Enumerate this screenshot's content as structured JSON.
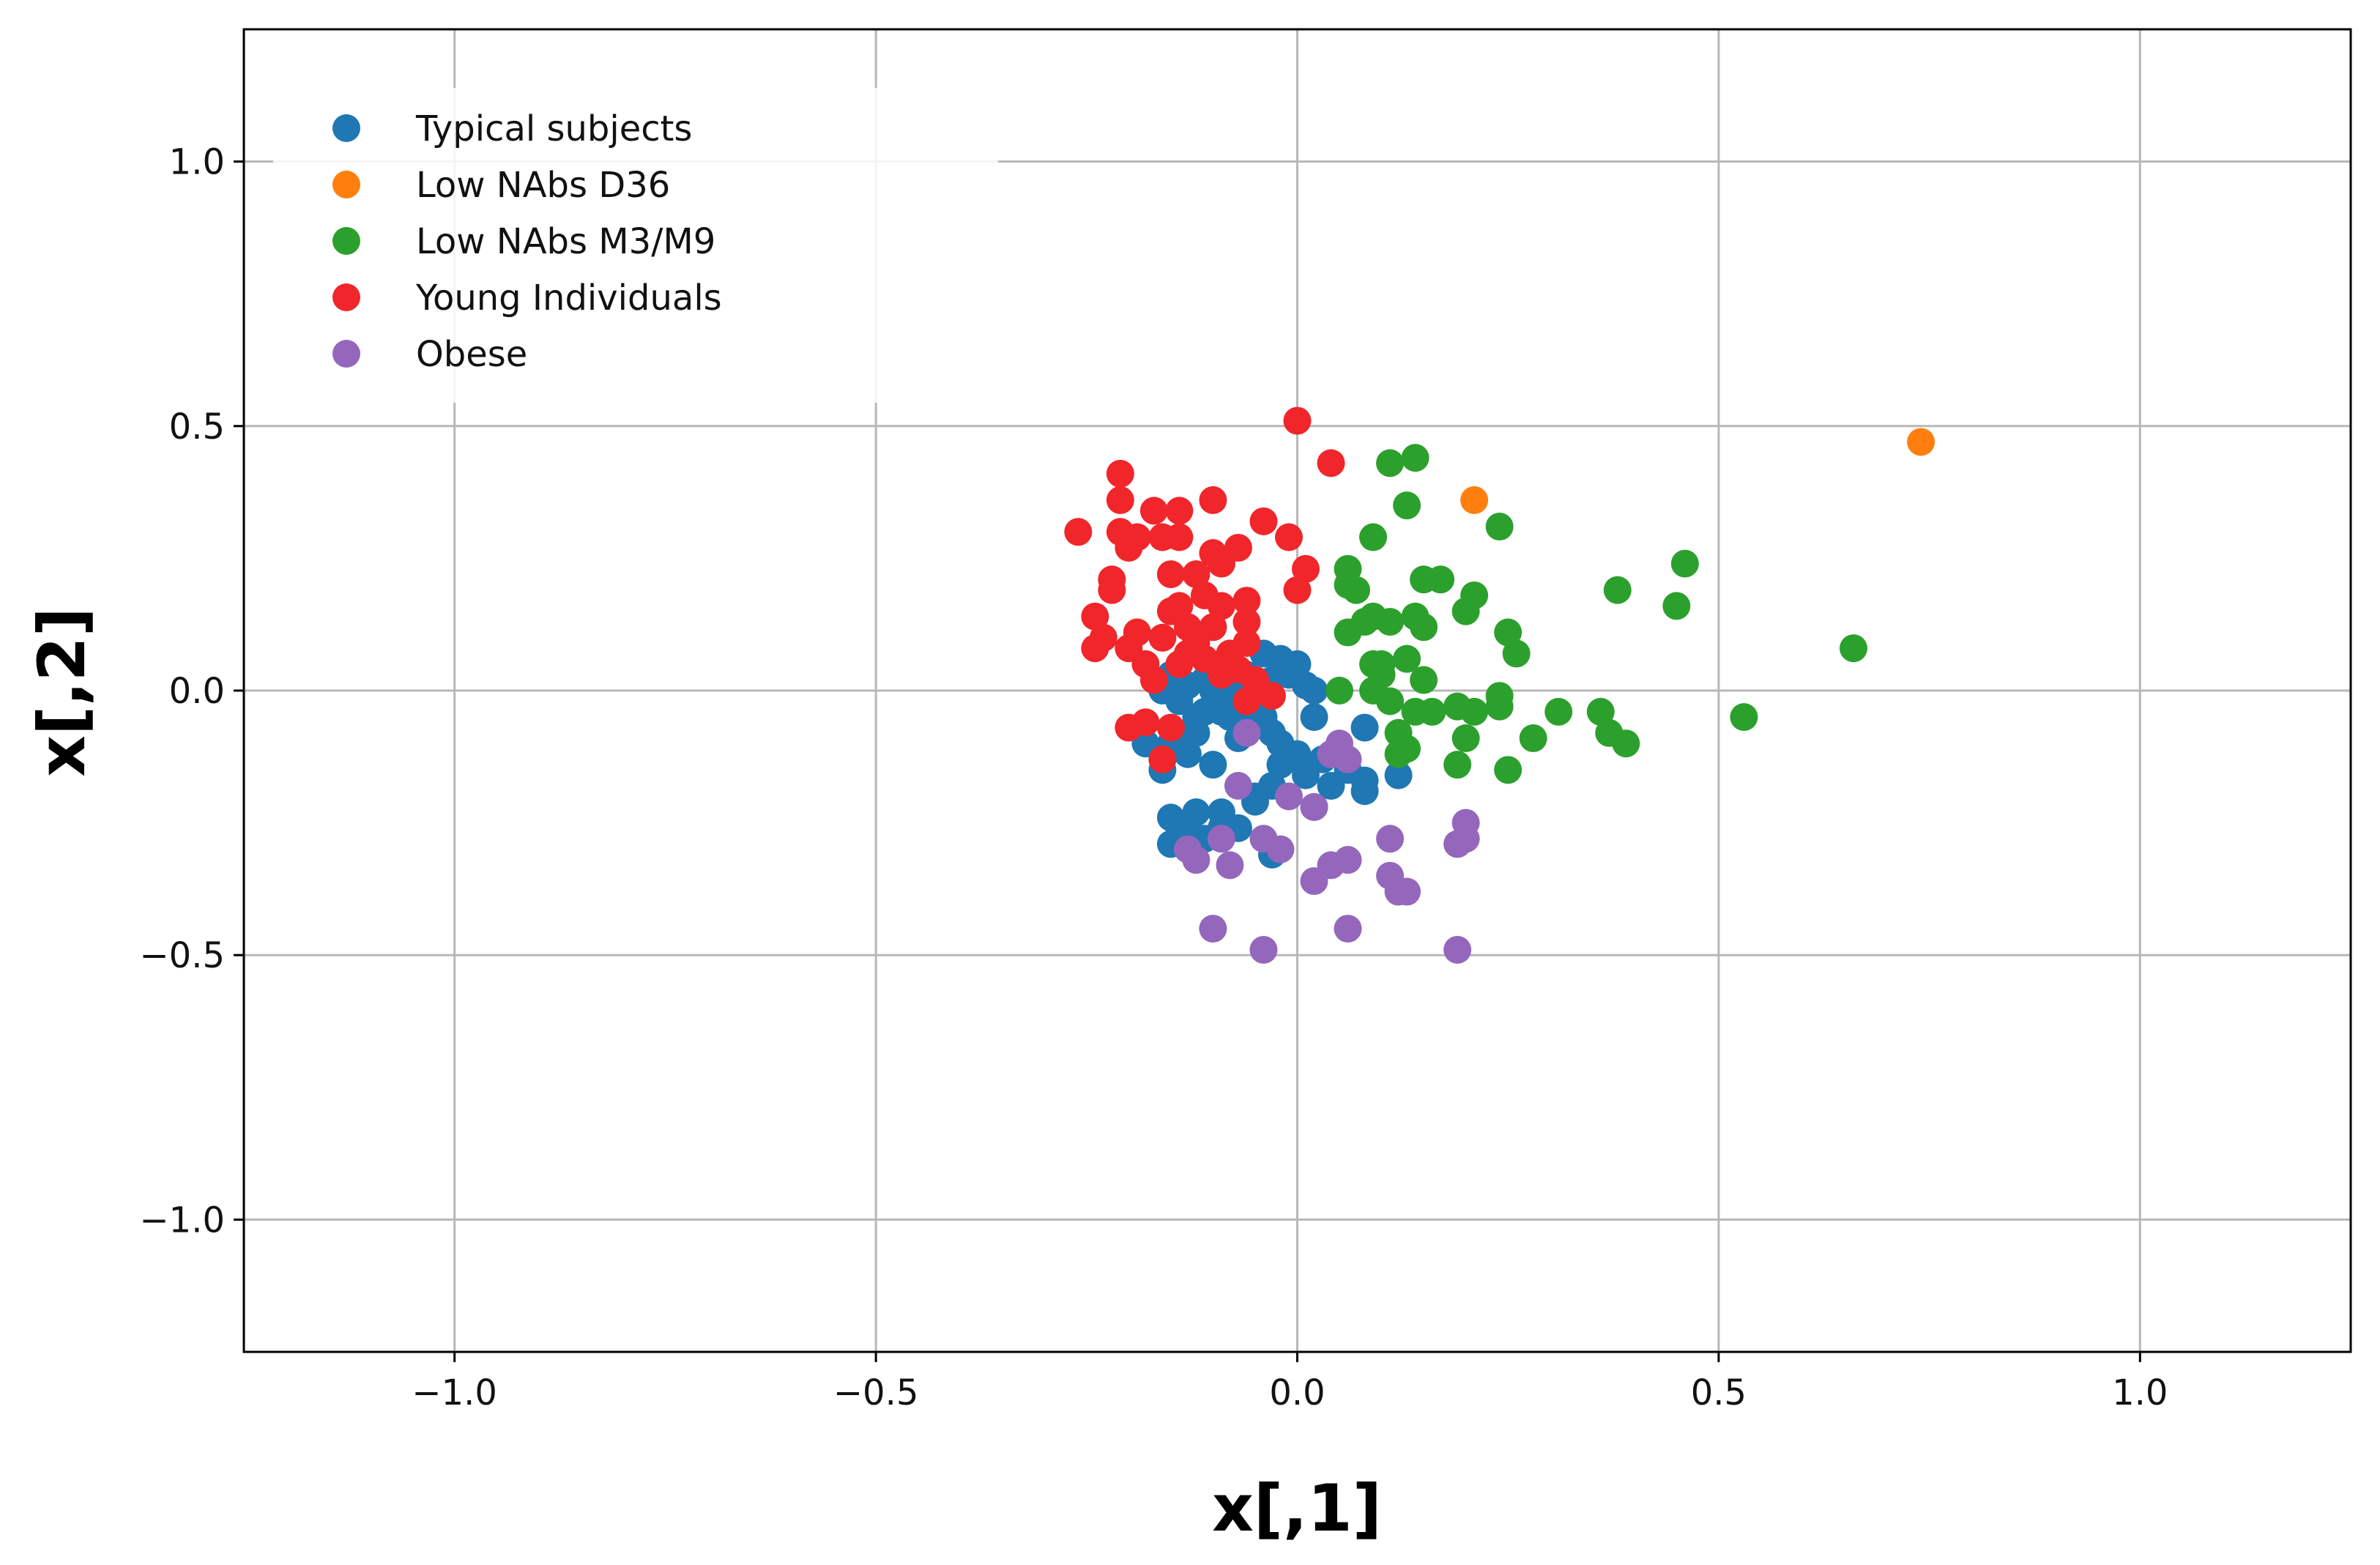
{
  "chart_data": {
    "type": "scatter",
    "xlabel": "x[,1]",
    "ylabel": "x[,2]",
    "xlim": [
      -1.25,
      1.25
    ],
    "ylim": [
      -1.25,
      1.25
    ],
    "xticks": [
      -1.0,
      -0.5,
      0.0,
      0.5,
      1.0
    ],
    "yticks": [
      -1.0,
      -0.5,
      0.0,
      0.5,
      1.0
    ],
    "xtick_labels": [
      "−1.0",
      "−0.5",
      "0.0",
      "0.5",
      "1.0"
    ],
    "ytick_labels": [
      "−1.0",
      "−0.5",
      "0.0",
      "0.5",
      "1.0"
    ],
    "grid": true,
    "legend_position": "top-left",
    "series": [
      {
        "name": "Typical subjects",
        "color": "#1f77b4",
        "points": [
          [
            -0.16,
            0.0
          ],
          [
            -0.15,
            0.03
          ],
          [
            -0.14,
            -0.02
          ],
          [
            -0.13,
            0.01
          ],
          [
            -0.12,
            -0.05
          ],
          [
            -0.1,
            0.0
          ],
          [
            -0.09,
            -0.04
          ],
          [
            -0.08,
            0.02
          ],
          [
            -0.07,
            -0.06
          ],
          [
            -0.06,
            0.03
          ],
          [
            -0.05,
            -0.01
          ],
          [
            -0.04,
            0.07
          ],
          [
            -0.03,
            0.02
          ],
          [
            -0.02,
            0.06
          ],
          [
            -0.01,
            0.04
          ],
          [
            0.0,
            0.05
          ],
          [
            0.01,
            0.01
          ],
          [
            0.02,
            -0.05
          ],
          [
            -0.03,
            -0.08
          ],
          [
            -0.04,
            -0.05
          ],
          [
            -0.06,
            -0.02
          ],
          [
            -0.08,
            -0.05
          ],
          [
            -0.11,
            -0.04
          ],
          [
            -0.13,
            -0.09
          ],
          [
            -0.15,
            -0.1
          ],
          [
            -0.16,
            -0.13
          ],
          [
            -0.13,
            -0.12
          ],
          [
            -0.1,
            -0.14
          ],
          [
            -0.07,
            -0.09
          ],
          [
            -0.05,
            -0.2
          ],
          [
            -0.03,
            -0.18
          ],
          [
            -0.02,
            -0.14
          ],
          [
            0.0,
            -0.12
          ],
          [
            0.01,
            -0.16
          ],
          [
            0.02,
            -0.22
          ],
          [
            0.04,
            -0.18
          ],
          [
            0.05,
            -0.12
          ],
          [
            0.06,
            -0.15
          ],
          [
            0.08,
            -0.07
          ],
          [
            0.08,
            -0.17
          ],
          [
            0.12,
            -0.16
          ],
          [
            -0.16,
            -0.15
          ],
          [
            -0.15,
            -0.24
          ],
          [
            -0.14,
            -0.27
          ],
          [
            -0.12,
            -0.23
          ],
          [
            -0.11,
            -0.28
          ],
          [
            -0.09,
            -0.26
          ],
          [
            -0.07,
            -0.26
          ],
          [
            -0.05,
            -0.21
          ],
          [
            -0.03,
            -0.31
          ],
          [
            -0.15,
            -0.29
          ],
          [
            -0.13,
            -0.25
          ],
          [
            -0.09,
            -0.23
          ],
          [
            -0.02,
            -0.1
          ],
          [
            0.03,
            -0.13
          ],
          [
            -0.12,
            -0.08
          ],
          [
            -0.01,
            0.03
          ],
          [
            0.02,
            0.0
          ],
          [
            -0.07,
            0.0
          ],
          [
            -0.11,
            0.02
          ],
          [
            -0.08,
            -0.02
          ],
          [
            0.08,
            -0.19
          ],
          [
            -0.18,
            -0.1
          ]
        ]
      },
      {
        "name": "Low NAbs D36",
        "color": "#ff7f0e",
        "points": [
          [
            0.21,
            0.36
          ],
          [
            0.74,
            0.47
          ]
        ]
      },
      {
        "name": "Low NAbs M3/M9",
        "color": "#2ca02c",
        "points": [
          [
            0.11,
            0.43
          ],
          [
            0.14,
            0.44
          ],
          [
            0.13,
            0.35
          ],
          [
            0.24,
            0.31
          ],
          [
            0.09,
            0.29
          ],
          [
            0.06,
            0.23
          ],
          [
            0.06,
            0.2
          ],
          [
            0.07,
            0.19
          ],
          [
            0.15,
            0.21
          ],
          [
            0.17,
            0.21
          ],
          [
            0.21,
            0.18
          ],
          [
            0.2,
            0.15
          ],
          [
            0.06,
            0.11
          ],
          [
            0.08,
            0.13
          ],
          [
            0.09,
            0.14
          ],
          [
            0.11,
            0.13
          ],
          [
            0.14,
            0.14
          ],
          [
            0.15,
            0.12
          ],
          [
            0.25,
            0.11
          ],
          [
            0.26,
            0.07
          ],
          [
            0.09,
            0.05
          ],
          [
            0.1,
            0.03
          ],
          [
            0.13,
            0.06
          ],
          [
            0.15,
            0.02
          ],
          [
            0.05,
            0.0
          ],
          [
            0.09,
            0.0
          ],
          [
            0.11,
            -0.02
          ],
          [
            0.14,
            -0.04
          ],
          [
            0.16,
            -0.04
          ],
          [
            0.19,
            -0.03
          ],
          [
            0.21,
            -0.04
          ],
          [
            0.24,
            -0.01
          ],
          [
            0.24,
            -0.03
          ],
          [
            0.12,
            -0.08
          ],
          [
            0.13,
            -0.11
          ],
          [
            0.12,
            -0.12
          ],
          [
            0.2,
            -0.09
          ],
          [
            0.19,
            -0.14
          ],
          [
            0.25,
            -0.15
          ],
          [
            0.28,
            -0.09
          ],
          [
            0.31,
            -0.04
          ],
          [
            0.36,
            -0.04
          ],
          [
            0.37,
            -0.08
          ],
          [
            0.39,
            -0.1
          ],
          [
            0.38,
            0.19
          ],
          [
            0.45,
            0.16
          ],
          [
            0.46,
            0.24
          ],
          [
            0.53,
            -0.05
          ],
          [
            0.66,
            0.08
          ],
          [
            0.1,
            0.05
          ]
        ]
      },
      {
        "name": "Young Individuals",
        "color": "#f0262b",
        "points": [
          [
            0.0,
            0.51
          ],
          [
            0.04,
            0.43
          ],
          [
            -0.21,
            0.41
          ],
          [
            -0.21,
            0.36
          ],
          [
            -0.17,
            0.34
          ],
          [
            -0.14,
            0.34
          ],
          [
            -0.1,
            0.36
          ],
          [
            -0.04,
            0.32
          ],
          [
            -0.26,
            0.3
          ],
          [
            -0.21,
            0.3
          ],
          [
            -0.19,
            0.29
          ],
          [
            -0.16,
            0.29
          ],
          [
            -0.14,
            0.29
          ],
          [
            -0.2,
            0.27
          ],
          [
            -0.1,
            0.26
          ],
          [
            -0.07,
            0.27
          ],
          [
            -0.01,
            0.29
          ],
          [
            -0.09,
            0.24
          ],
          [
            -0.12,
            0.22
          ],
          [
            -0.15,
            0.22
          ],
          [
            0.01,
            0.23
          ],
          [
            -0.22,
            0.21
          ],
          [
            -0.22,
            0.19
          ],
          [
            0.0,
            0.19
          ],
          [
            -0.11,
            0.18
          ],
          [
            -0.14,
            0.16
          ],
          [
            -0.09,
            0.16
          ],
          [
            -0.06,
            0.17
          ],
          [
            -0.15,
            0.15
          ],
          [
            -0.24,
            0.14
          ],
          [
            -0.1,
            0.12
          ],
          [
            -0.13,
            0.12
          ],
          [
            -0.06,
            0.13
          ],
          [
            -0.23,
            0.1
          ],
          [
            -0.19,
            0.11
          ],
          [
            -0.16,
            0.1
          ],
          [
            -0.12,
            0.09
          ],
          [
            -0.2,
            0.08
          ],
          [
            -0.24,
            0.08
          ],
          [
            -0.18,
            0.05
          ],
          [
            -0.13,
            0.07
          ],
          [
            -0.11,
            0.06
          ],
          [
            -0.07,
            0.04
          ],
          [
            -0.09,
            0.03
          ],
          [
            -0.05,
            0.02
          ],
          [
            -0.08,
            0.07
          ],
          [
            -0.06,
            0.09
          ],
          [
            -0.03,
            -0.01
          ],
          [
            -0.06,
            -0.02
          ],
          [
            -0.2,
            -0.07
          ],
          [
            -0.18,
            -0.06
          ],
          [
            -0.15,
            -0.07
          ],
          [
            -0.16,
            -0.13
          ],
          [
            -0.14,
            0.05
          ],
          [
            -0.17,
            0.02
          ]
        ]
      },
      {
        "name": "Obese",
        "color": "#9467bd",
        "points": [
          [
            -0.06,
            -0.08
          ],
          [
            -0.07,
            -0.18
          ],
          [
            -0.01,
            -0.2
          ],
          [
            0.02,
            -0.22
          ],
          [
            0.04,
            -0.12
          ],
          [
            0.06,
            -0.13
          ],
          [
            -0.13,
            -0.3
          ],
          [
            -0.12,
            -0.32
          ],
          [
            -0.09,
            -0.28
          ],
          [
            -0.08,
            -0.33
          ],
          [
            -0.04,
            -0.28
          ],
          [
            -0.02,
            -0.3
          ],
          [
            0.02,
            -0.36
          ],
          [
            0.04,
            -0.33
          ],
          [
            0.06,
            -0.32
          ],
          [
            0.11,
            -0.28
          ],
          [
            0.11,
            -0.35
          ],
          [
            0.12,
            -0.38
          ],
          [
            0.13,
            -0.38
          ],
          [
            0.19,
            -0.29
          ],
          [
            0.2,
            -0.28
          ],
          [
            0.2,
            -0.25
          ],
          [
            -0.1,
            -0.45
          ],
          [
            -0.04,
            -0.49
          ],
          [
            0.06,
            -0.45
          ],
          [
            0.19,
            -0.49
          ],
          [
            0.05,
            -0.1
          ]
        ]
      }
    ]
  }
}
